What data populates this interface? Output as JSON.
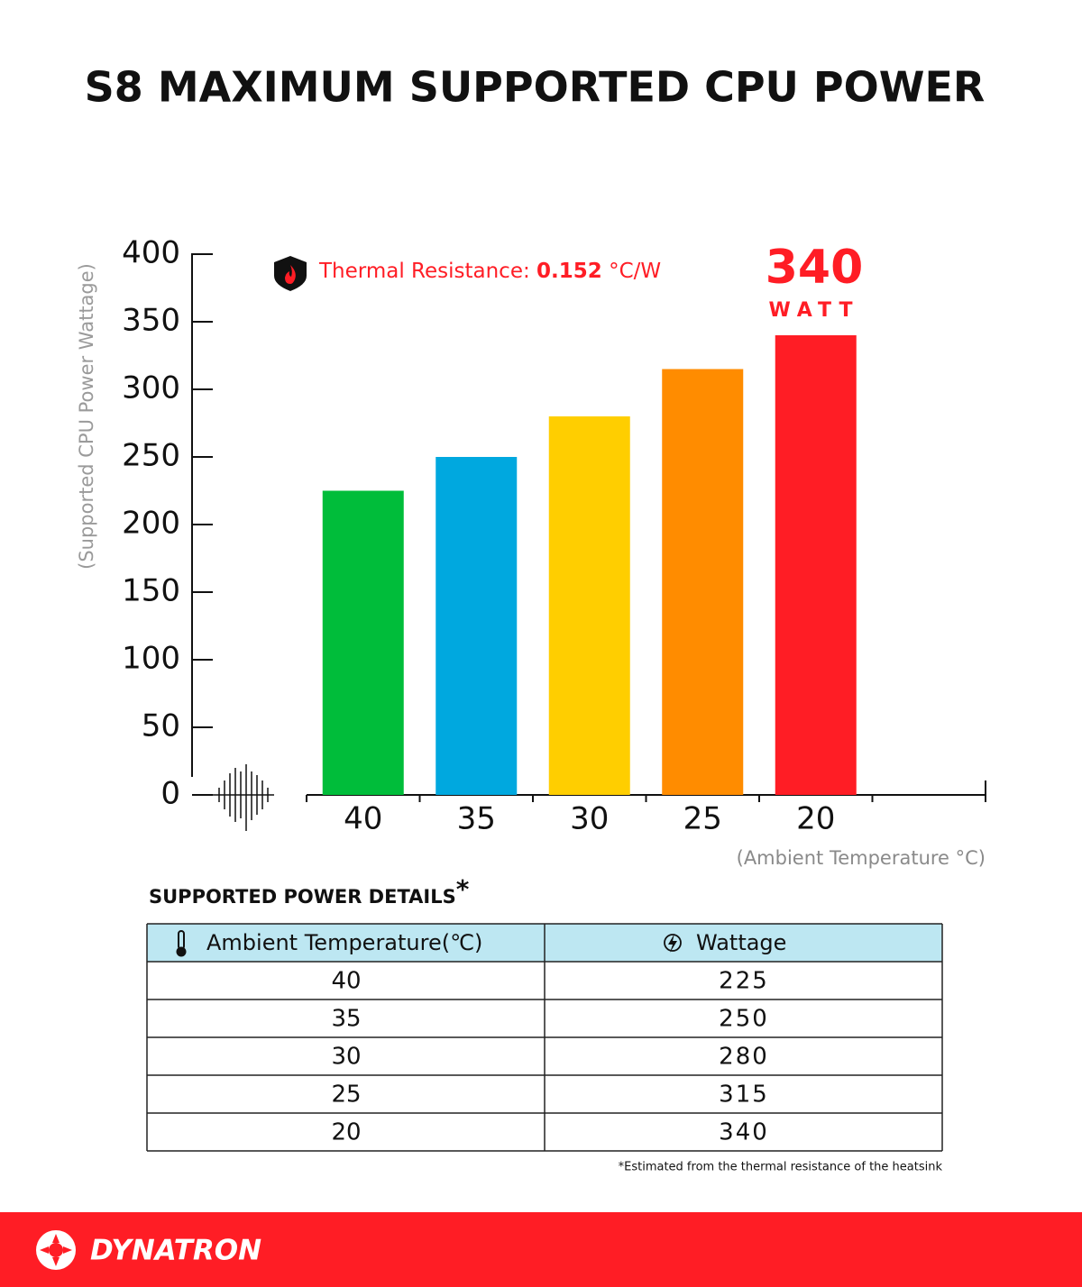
{
  "chart_data": {
    "type": "bar",
    "title": "S8 MAXIMUM SUPPORTED CPU POWER",
    "y_label": "(Supported CPU Power Wattage)",
    "x_label": "(Ambient Temperature °C)",
    "annotation": {
      "label": "Thermal Resistance:",
      "value": 0.152,
      "unit": "°C/W"
    },
    "highlight_unit": "WATT",
    "categories": [
      "40",
      "35",
      "30",
      "25",
      "20"
    ],
    "values": [
      225,
      250,
      280,
      315,
      340
    ],
    "colors": [
      "#00bd3a",
      "#00a8df",
      "#ffce00",
      "#ff8c00",
      "#ff1d25"
    ],
    "ylim": [
      0,
      400
    ],
    "yticks": [
      0,
      50,
      100,
      150,
      200,
      250,
      300,
      350,
      400
    ],
    "grid": false
  },
  "table": {
    "title": "SUPPORTED POWER DETAILS",
    "title_mark": "*",
    "headers": [
      "Ambient Temperature(℃)",
      "Wattage"
    ],
    "footnote": "*Estimated from the thermal resistance of the heatsink"
  },
  "footer": {
    "brand": "DYNATRON"
  }
}
